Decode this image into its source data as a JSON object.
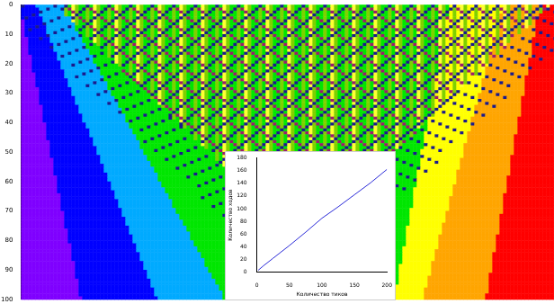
{
  "chart_data": [
    {
      "type": "image",
      "ylim": [
        100,
        0
      ],
      "yticks": [
        0,
        10,
        20,
        30,
        40,
        50,
        60,
        70,
        80,
        90,
        100
      ],
      "tick_labels": "y"
    },
    {
      "type": "line",
      "x_label": "Количество тиков",
      "y_label": "Количество ходов",
      "x": [
        2,
        10,
        25,
        50,
        75,
        100,
        125,
        150,
        175,
        200
      ],
      "values": [
        3,
        10,
        22,
        42,
        63,
        85,
        103,
        122,
        141,
        162
      ],
      "color": "#2a2ad8",
      "xlim": [
        0,
        200
      ],
      "xticks": [
        0,
        50,
        100,
        150,
        200
      ],
      "ylim": [
        0,
        180
      ],
      "yticks": [
        0,
        20,
        40,
        60,
        80,
        100,
        120,
        140,
        160,
        180
      ],
      "grid": false
    }
  ]
}
